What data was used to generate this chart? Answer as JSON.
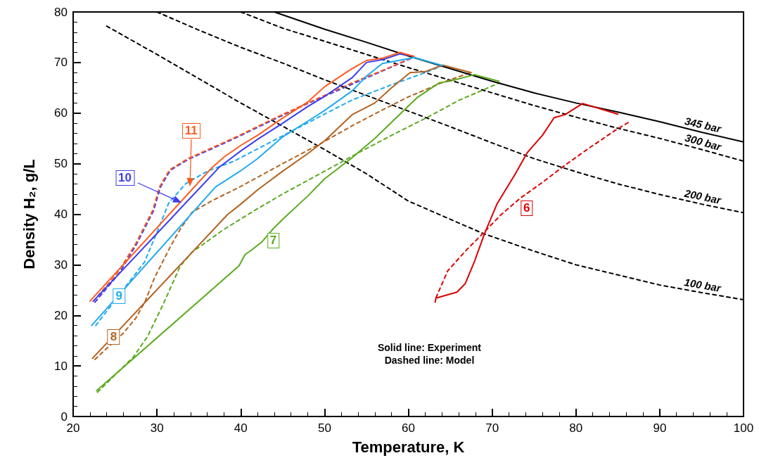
{
  "chart_data": {
    "type": "line",
    "xlabel": "Temperature, K",
    "ylabel": "Density H₂, g/L",
    "xlim": [
      20,
      100
    ],
    "ylim": [
      0,
      80
    ],
    "xticks": [
      20,
      30,
      40,
      50,
      60,
      70,
      80,
      90,
      100
    ],
    "yticks": [
      0,
      10,
      20,
      30,
      40,
      50,
      60,
      70,
      80
    ],
    "grid": false,
    "legend": false,
    "marker": "none",
    "annotations": [
      "Solid line: Experiment",
      "Dashed line: Model"
    ],
    "series": [
      {
        "name": "345 bar",
        "color": "#000000",
        "line_style": "solid",
        "x": [
          44,
          50,
          55,
          60,
          65,
          70,
          75,
          80,
          85,
          90,
          95,
          100
        ],
        "values": [
          80,
          76.6,
          74,
          71.3,
          68.8,
          66.3,
          64,
          62,
          60.2,
          58.3,
          56.2,
          54.3
        ]
      },
      {
        "name": "300 bar",
        "color": "#000000",
        "line_style": "dashed",
        "x": [
          40,
          45,
          50,
          55,
          60,
          65,
          70,
          75,
          80,
          85,
          90,
          95,
          100
        ],
        "values": [
          80,
          76.8,
          74.2,
          71.6,
          69,
          66.5,
          64,
          61.5,
          59.2,
          57,
          55,
          52.8,
          50.5
        ]
      },
      {
        "name": "200 bar",
        "color": "#000000",
        "line_style": "dashed",
        "x": [
          30,
          35,
          40,
          45,
          50,
          55,
          60,
          65,
          70,
          75,
          80,
          85,
          90,
          95,
          100
        ],
        "values": [
          80,
          76.4,
          73,
          69.9,
          66.6,
          63.5,
          60.4,
          57.3,
          54.1,
          51,
          48.4,
          46,
          43.9,
          42,
          40.3
        ]
      },
      {
        "name": "100 bar",
        "color": "#000000",
        "line_style": "dashed",
        "x": [
          24,
          30,
          35,
          40,
          45,
          50,
          55,
          60,
          65,
          68.9,
          75,
          80,
          85,
          90,
          95,
          100
        ],
        "values": [
          77.2,
          71.6,
          66.8,
          62,
          57.4,
          52.8,
          48,
          42.6,
          39,
          36.2,
          32.7,
          30,
          28,
          26,
          24.5,
          23.1
        ]
      },
      {
        "name": "6",
        "color": "#dc0000",
        "line_style": "solid",
        "x": [
          63.2,
          63.3,
          65.8,
          66.8,
          67.9,
          69.1,
          70.6,
          72.7,
          74.2,
          76,
          77.4,
          78.7,
          80.8,
          85
        ],
        "values": [
          22.6,
          23.4,
          24.6,
          26.3,
          30.7,
          36.2,
          42.1,
          47.8,
          52.2,
          55.6,
          59.1,
          59.7,
          61.9,
          59.8
        ]
      },
      {
        "color": "#dc0000",
        "line_style": "dashed",
        "x": [
          63.3,
          64.7,
          66.8,
          68.9,
          71,
          73.3,
          76,
          78.7,
          81.5,
          84.7,
          86.5
        ],
        "values": [
          23.5,
          28.8,
          32.7,
          36.2,
          39.8,
          43.1,
          46.3,
          49.7,
          53,
          56.6,
          58.4
        ]
      },
      {
        "name": "7",
        "color": "#5aaa1e",
        "line_style": "solid",
        "x": [
          22.8,
          39.8,
          40.5,
          41.2,
          42.5,
          43.8,
          45,
          48,
          50,
          53.3,
          56,
          59.2,
          61,
          63.7,
          64.9,
          67.9,
          70.8
        ],
        "values": [
          5.1,
          29.8,
          32,
          32.8,
          34.5,
          37,
          39,
          43.6,
          47,
          51.2,
          55,
          60.1,
          63,
          66,
          66.3,
          67.6,
          66.3
        ]
      },
      {
        "color": "#5aaa1e",
        "line_style": "dashed",
        "x": [
          22.9,
          27.2,
          28.9,
          30.8,
          32.8,
          34.2,
          37.9,
          41.5,
          45,
          50,
          54.1,
          58,
          62.2,
          66,
          70.9
        ],
        "values": [
          4.8,
          11.8,
          15.9,
          22.4,
          29.8,
          32.5,
          36.9,
          40.6,
          44,
          48.5,
          52.2,
          55.6,
          59.1,
          62.5,
          66
        ]
      },
      {
        "name": "8",
        "color": "#b4621e",
        "line_style": "solid",
        "x": [
          22.3,
          38.4,
          40,
          42,
          45,
          48,
          50,
          53.3,
          56,
          58,
          60.2,
          62,
          64.1,
          67.5
        ],
        "values": [
          11.5,
          39.9,
          42,
          44.8,
          48.5,
          52,
          54.5,
          59.7,
          62,
          65,
          68,
          68.2,
          69.5,
          68
        ]
      },
      {
        "color": "#b4621e",
        "line_style": "dashed",
        "x": [
          22.6,
          26,
          27.5,
          28.6,
          29.7,
          31.7,
          32.8,
          34.2,
          36.5,
          40,
          45,
          50,
          53.3,
          57,
          60,
          64,
          67.4
        ],
        "values": [
          11.3,
          16.5,
          19.5,
          22.8,
          27.4,
          33.9,
          37.1,
          40.4,
          42.6,
          45.5,
          50,
          54.4,
          57.5,
          60.7,
          63.2,
          66,
          68
        ]
      },
      {
        "name": "9",
        "color": "#1eaaf0",
        "line_style": "solid",
        "x": [
          22.2,
          37,
          40,
          42,
          45,
          48,
          50,
          53.3,
          55,
          56.9,
          58.5,
          60.7,
          64.1
        ],
        "values": [
          18,
          45.4,
          48.6,
          51,
          55.3,
          58.4,
          60.5,
          64.4,
          67.3,
          69.8,
          70.3,
          71,
          69.4
        ]
      },
      {
        "color": "#1eaaf0",
        "line_style": "dashed",
        "x": [
          22.7,
          26.4,
          28.5,
          30,
          31.4,
          33.4,
          36,
          39.2,
          45,
          50,
          53.3,
          58,
          62,
          64.1
        ],
        "values": [
          18,
          26,
          30.5,
          36.4,
          42.2,
          46,
          48.5,
          50.5,
          55.5,
          59.8,
          62.6,
          65.6,
          68,
          69.4
        ]
      },
      {
        "name": "10",
        "color": "#3c3cf0",
        "line_style": "solid",
        "x": [
          22.4,
          37.5,
          40,
          42,
          45,
          48,
          50,
          53.3,
          55,
          57,
          59,
          60.5
        ],
        "values": [
          22.8,
          49.4,
          52.5,
          54.8,
          58,
          61.3,
          63.3,
          67,
          70,
          70.6,
          71.7,
          71.3
        ]
      },
      {
        "color": "#3c3cf0",
        "line_style": "dashed",
        "x": [
          22.6,
          25.5,
          27.6,
          29.6,
          30.4,
          31.6,
          33.8,
          39.3,
          44.4,
          48,
          53.4,
          57,
          60.3
        ],
        "values": [
          22.6,
          28.3,
          34.2,
          40.7,
          45.3,
          48.7,
          50.9,
          55,
          59.1,
          61.9,
          65.8,
          68.4,
          70.8
        ]
      },
      {
        "name": "11",
        "color": "#ff5a1e",
        "line_style": "solid",
        "x": [
          22,
          36.5,
          38,
          40,
          42,
          45,
          48,
          50,
          53,
          55,
          57,
          59,
          60.7
        ],
        "values": [
          22.8,
          49.1,
          51.3,
          53.6,
          55.6,
          59,
          62.2,
          65.2,
          68.5,
          70.4,
          70.9,
          72,
          71.2
        ]
      },
      {
        "color": "#ff5a1e",
        "line_style": "dashed",
        "x": [
          22.4,
          25.3,
          27.5,
          29.5,
          30.3,
          31.5,
          33.7,
          39.2,
          44.3,
          48,
          53.3,
          57,
          60.5
        ],
        "values": [
          22.8,
          28.4,
          34.3,
          40.8,
          45.4,
          48.8,
          51,
          55.1,
          59.2,
          62,
          66,
          68.5,
          71
        ]
      }
    ]
  }
}
